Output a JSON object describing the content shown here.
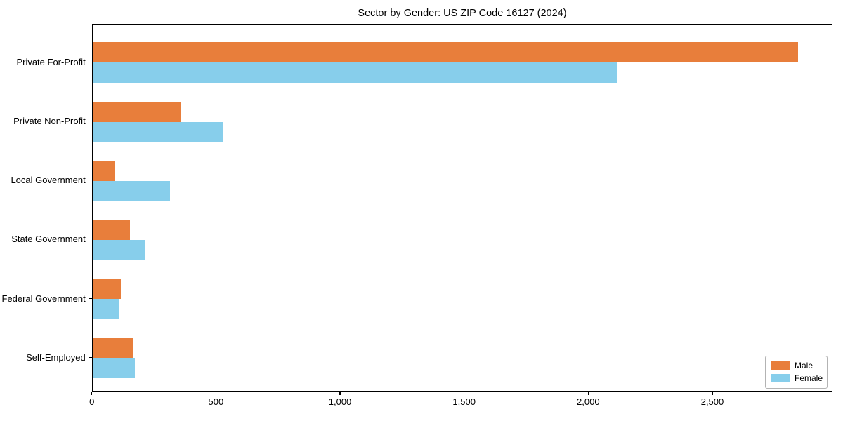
{
  "chart_data": {
    "type": "bar",
    "orientation": "horizontal",
    "title": "Sector by Gender: US ZIP Code 16127 (2024)",
    "categories": [
      "Private For-Profit",
      "Private Non-Profit",
      "Local Government",
      "State Government",
      "Federal Government",
      "Self-Employed"
    ],
    "series": [
      {
        "name": "Male",
        "color": "#e87e3b",
        "values": [
          2842,
          356,
          91,
          151,
          113,
          163
        ]
      },
      {
        "name": "Female",
        "color": "#87ceeb",
        "values": [
          2114,
          526,
          311,
          210,
          109,
          171
        ]
      }
    ],
    "xlabel": "",
    "ylabel": "",
    "xlim": [
      0,
      2984
    ],
    "xticks": {
      "values": [
        0,
        500,
        1000,
        1500,
        2000,
        2500
      ],
      "labels": [
        "0",
        "500",
        "1,000",
        "1,500",
        "2,000",
        "2,500"
      ]
    },
    "grid": false,
    "legend": {
      "position": "lower right"
    },
    "colors": {
      "axis": "#000000",
      "background": "#ffffff"
    }
  }
}
